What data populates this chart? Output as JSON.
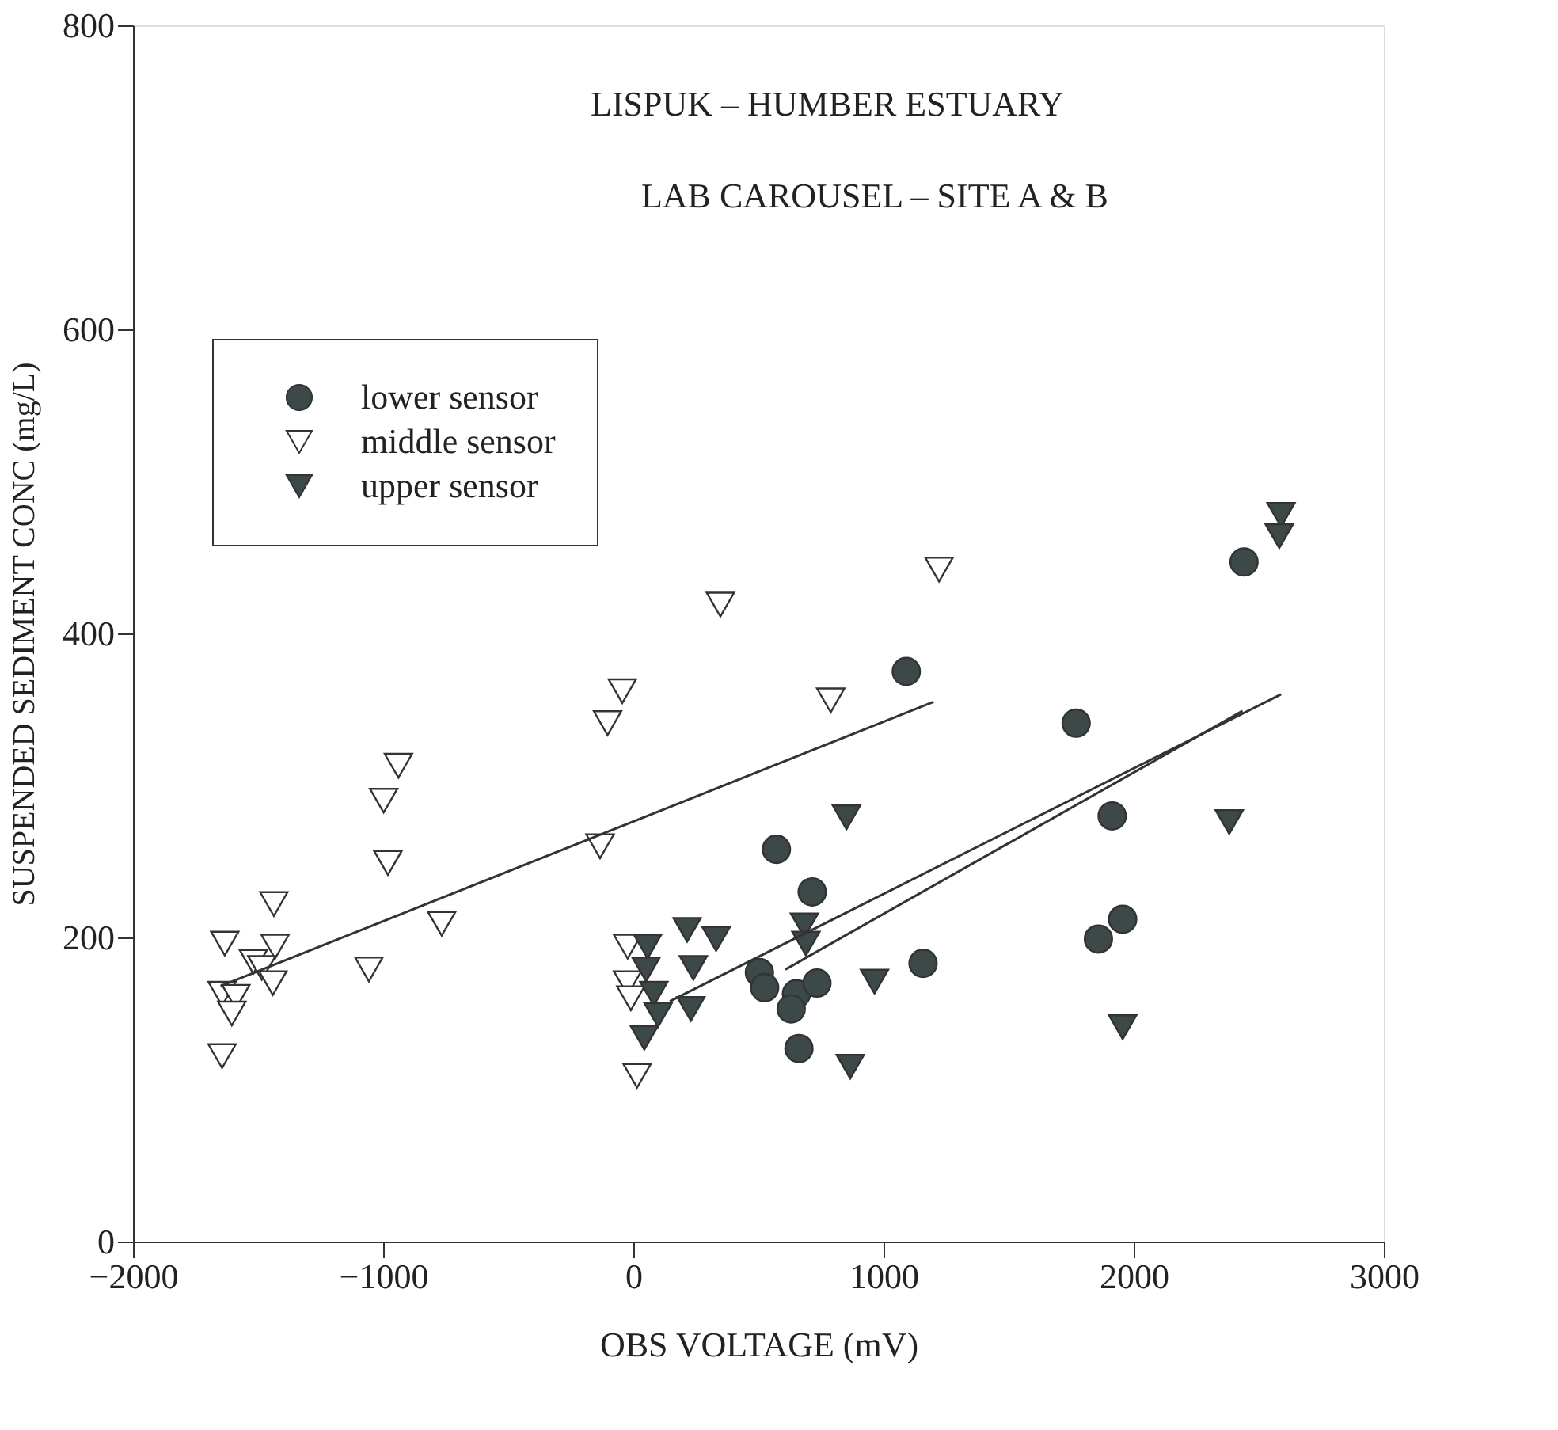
{
  "chart_data": {
    "type": "scatter",
    "title": "LISPUK – HUMBER ESTUARY",
    "subtitle": "LAB CAROUSEL – SITE A & B",
    "xlabel": "OBS VOLTAGE (mV)",
    "ylabel": "SUSPENDED SEDIMENT CONC (mg/L)",
    "xlim": [
      -2000,
      3000
    ],
    "xticks": [
      {
        "value": -2000,
        "label": "−2000"
      },
      {
        "value": -1000,
        "label": "−1000"
      },
      0,
      1000,
      2000,
      3000
    ],
    "ylim": [
      0,
      800
    ],
    "yticks": [
      0,
      200,
      400,
      600,
      800
    ],
    "grid": false,
    "legend": "top left",
    "series": [
      {
        "name": "lower sensor",
        "color": "#3d4848",
        "marker": "circle",
        "x": [
          1091,
          572,
          715,
          1158,
          504,
          525,
          652,
          734,
          631,
          662,
          1770,
          1914,
          1956,
          1859,
          2441
        ],
        "values": [
          375,
          258,
          230,
          183,
          177,
          167,
          163,
          170,
          153,
          127,
          341,
          280,
          212,
          199,
          447
        ]
      },
      {
        "name": "middle sensor",
        "color": "#ffffff",
        "marker": "triangle",
        "x": [
          -1633,
          -1437,
          -1432,
          -1519,
          -1485,
          -1441,
          -1644,
          -1589,
          -1605,
          -1644,
          -939,
          -998,
          -981,
          -766,
          -1057,
          -44,
          -103,
          -133,
          -23,
          -23,
          -10,
          15,
          789,
          348,
          1222
        ],
        "values": [
          196,
          222,
          194,
          184,
          180,
          170,
          163,
          161,
          150,
          122,
          313,
          290,
          249,
          209,
          179,
          362,
          341,
          260,
          194,
          170,
          160,
          109,
          356,
          419,
          442
        ]
      },
      {
        "name": "upper sensor",
        "color": "#3d4848",
        "marker": "triangle",
        "x": [
          852,
          215,
          331,
          57,
          240,
          51,
          684,
          690,
          964,
          82,
          230,
          99,
          44,
          867,
          2382,
          1956,
          2589,
          2582
        ],
        "values": [
          279,
          205,
          199,
          194,
          180,
          179,
          208,
          196,
          171,
          163,
          153,
          149,
          134,
          115,
          276,
          141,
          478,
          464
        ]
      },
      {
        "type": "line",
        "color": "#333333",
        "line_style": "solid",
        "x": [
          -1650,
          1200
        ],
        "values": [
          168,
          355
        ]
      },
      {
        "type": "line",
        "color": "#333333",
        "line_style": "solid",
        "x": [
          608,
          2435
        ],
        "values": [
          179,
          349
        ]
      },
      {
        "type": "line",
        "color": "#333333",
        "line_style": "solid",
        "x": [
          146,
          2589
        ],
        "values": [
          158,
          360
        ]
      }
    ]
  }
}
